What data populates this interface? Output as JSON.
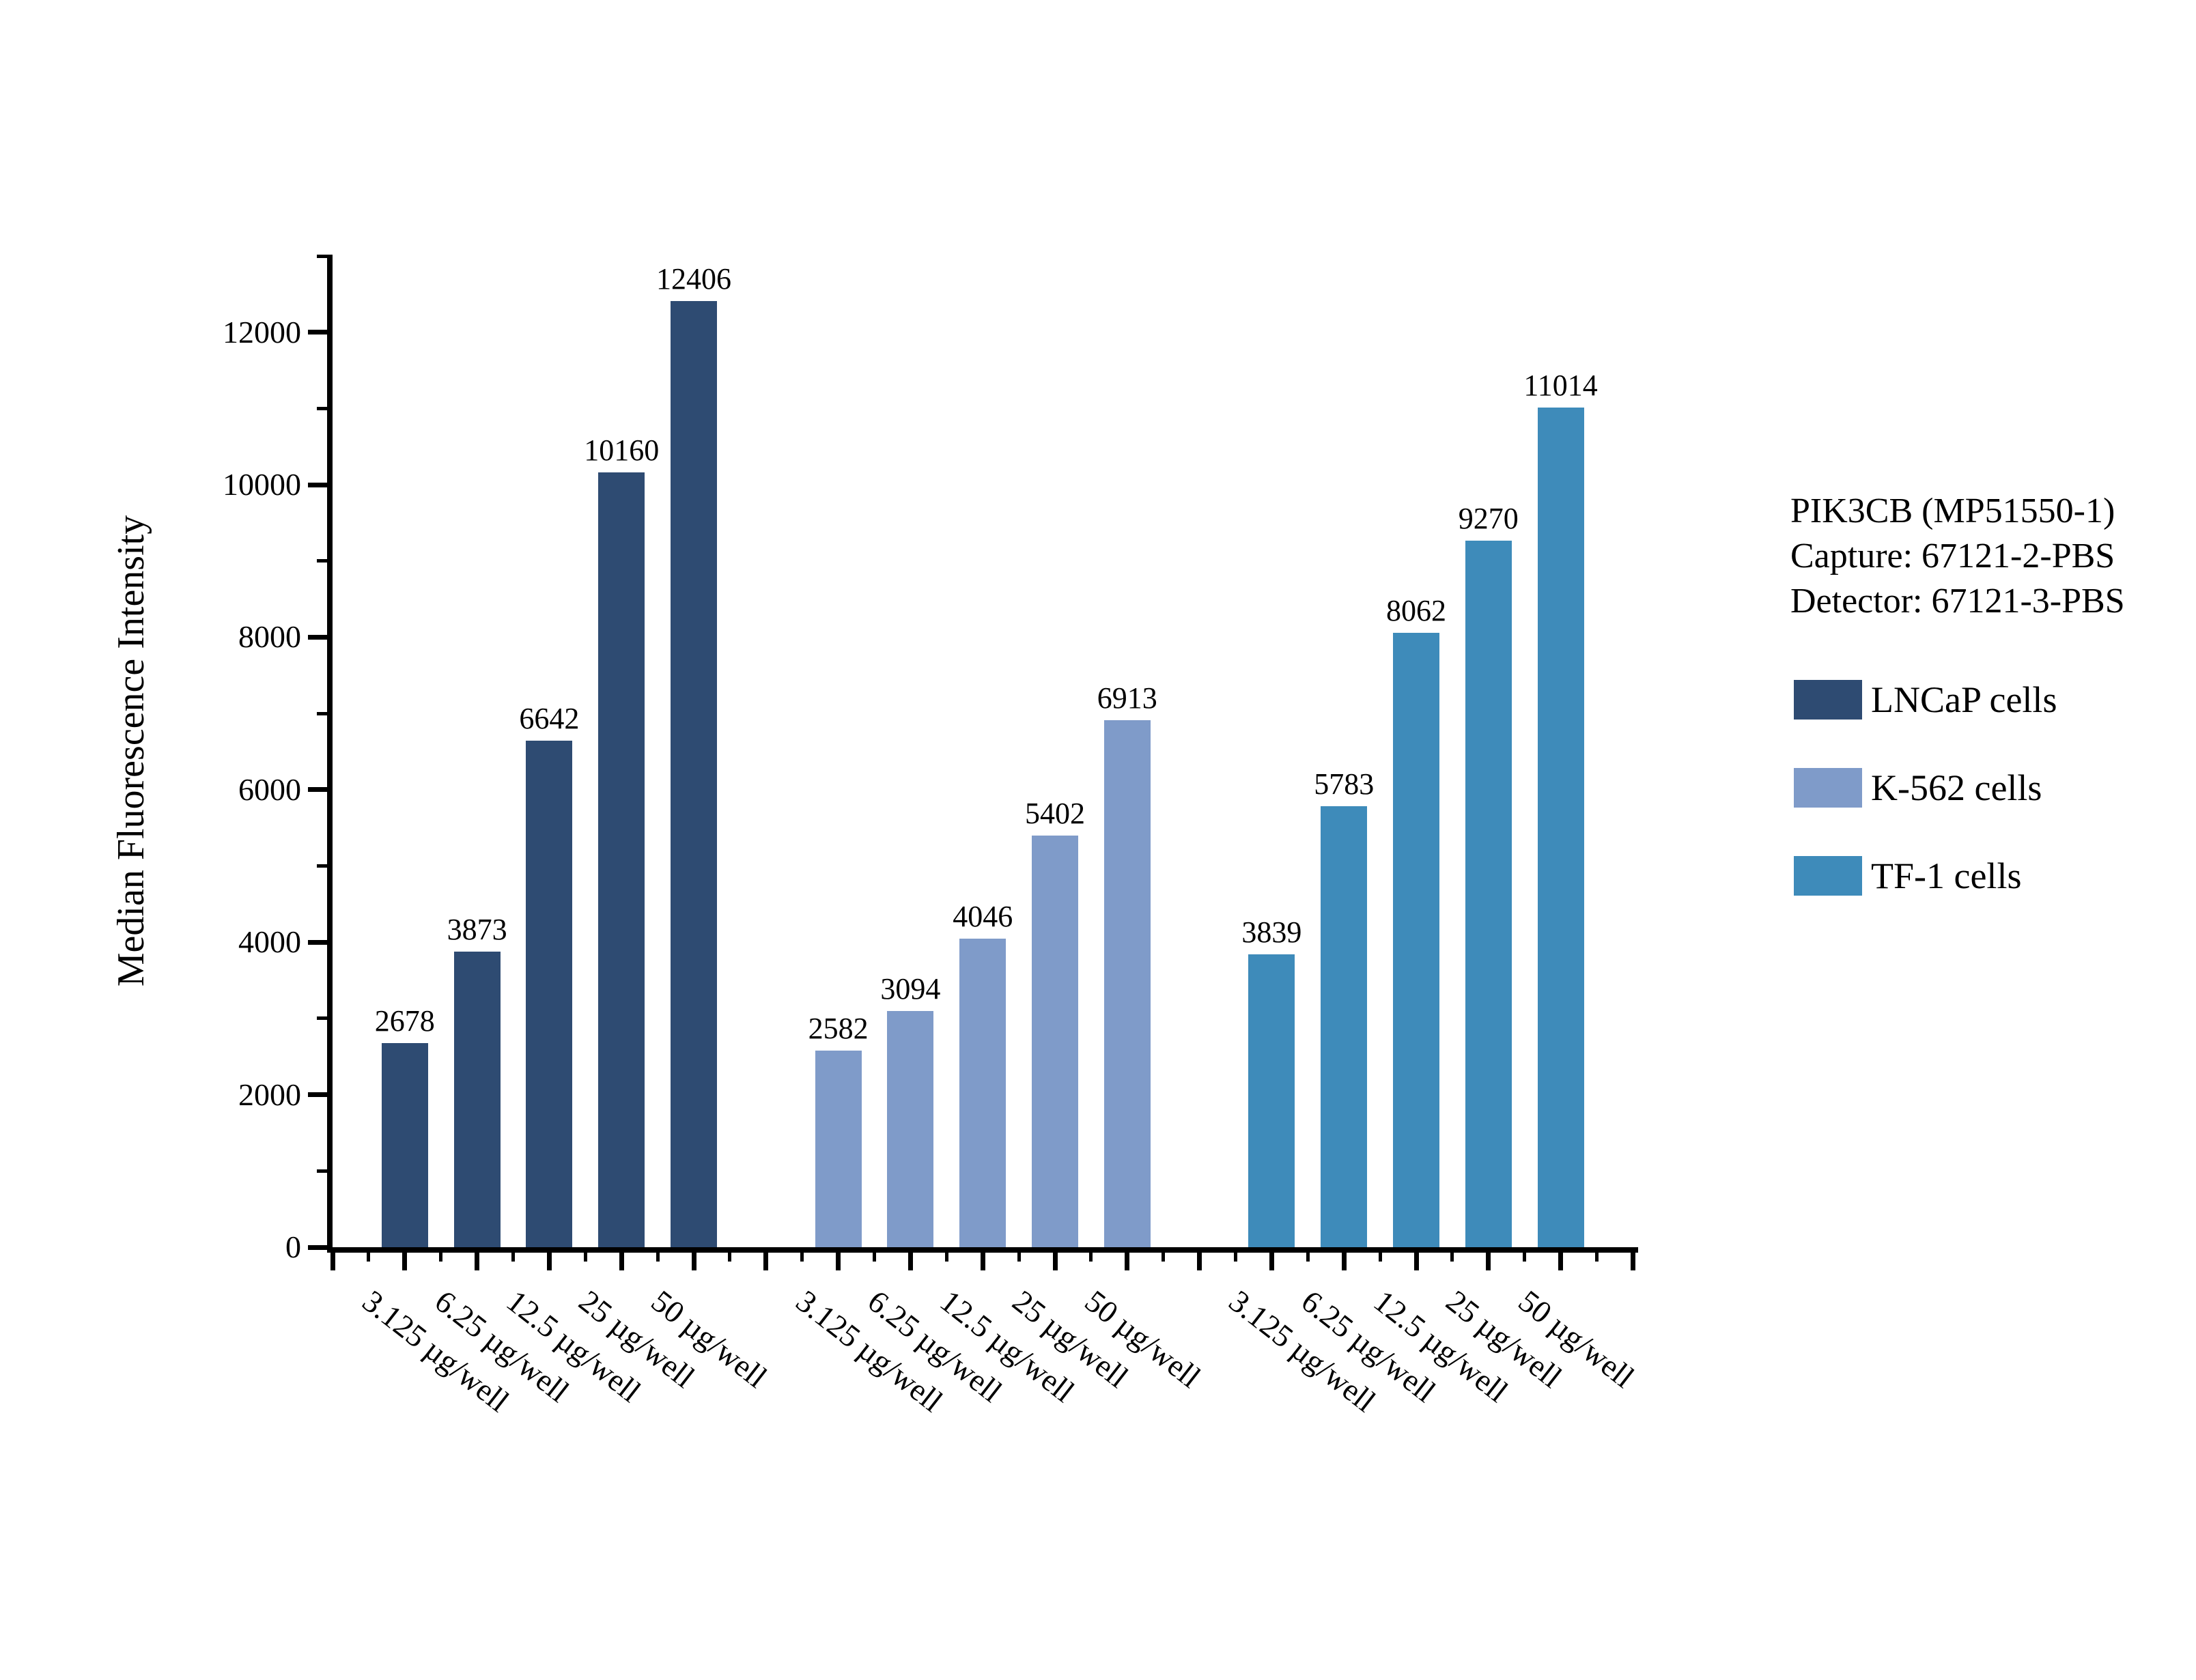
{
  "chart_data": {
    "type": "bar",
    "title": "",
    "ylabel": "Median Fluorescence Intensity",
    "xlabel": "",
    "ylim": [
      0,
      13000
    ],
    "yticks": [
      "0",
      "2000",
      "4000",
      "6000",
      "8000",
      "10000",
      "12000"
    ],
    "ytick_values": [
      0,
      2000,
      4000,
      6000,
      8000,
      10000,
      12000
    ],
    "ytick_minor_values": [
      1000,
      3000,
      5000,
      7000,
      9000,
      11000,
      13000
    ],
    "grid": false,
    "legend_position": "right",
    "categories": [
      "3.125 µg/well",
      "6.25 µg/well",
      "12.5 µg/well",
      "25 µg/well",
      "50 µg/well"
    ],
    "series": [
      {
        "name": "LNCaP cells",
        "color": "#2E4B72",
        "values": [
          2678,
          3873,
          6642,
          10160,
          12406
        ]
      },
      {
        "name": "K-562 cells",
        "color": "#7F9BC9",
        "values": [
          2582,
          3094,
          4046,
          5402,
          6913
        ]
      },
      {
        "name": "TF-1 cells",
        "color": "#3E8BBA",
        "values": [
          3839,
          5783,
          8062,
          9270,
          11014
        ]
      }
    ],
    "annotation": {
      "lines": [
        "PIK3CB (MP51550-1)",
        "Capture: 67121-2-PBS",
        "Detector: 67121-3-PBS"
      ]
    },
    "colors": {
      "axis": "#000000",
      "background": "#ffffff",
      "text": "#000000"
    }
  }
}
